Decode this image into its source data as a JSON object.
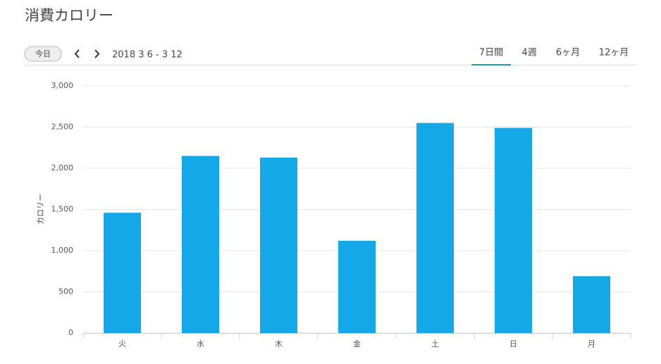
{
  "header": {
    "title": "消費カロリー",
    "today_button": "今日",
    "date_range": "2018 3 6 - 3 12",
    "tabs": [
      "7日間",
      "4週",
      "6ヶ月",
      "12ヶ月"
    ],
    "active_tab": 0
  },
  "chart_data": {
    "type": "bar",
    "y_label": "カロリー",
    "categories": [
      "火",
      "水",
      "木",
      "金",
      "土",
      "日",
      "月"
    ],
    "values": [
      1460,
      2150,
      2130,
      1120,
      2550,
      2490,
      690
    ],
    "color": "#14a8e9",
    "ylim": [
      0,
      3000
    ],
    "yticks": [
      0,
      500,
      {
        "value": 1000,
        "label": "1,000"
      },
      {
        "value": 1500,
        "label": "1,500"
      },
      {
        "value": 2000,
        "label": "2,000"
      },
      {
        "value": 2500,
        "label": "2,500"
      },
      {
        "value": 3000,
        "label": "3,000"
      }
    ],
    "grid": true
  }
}
